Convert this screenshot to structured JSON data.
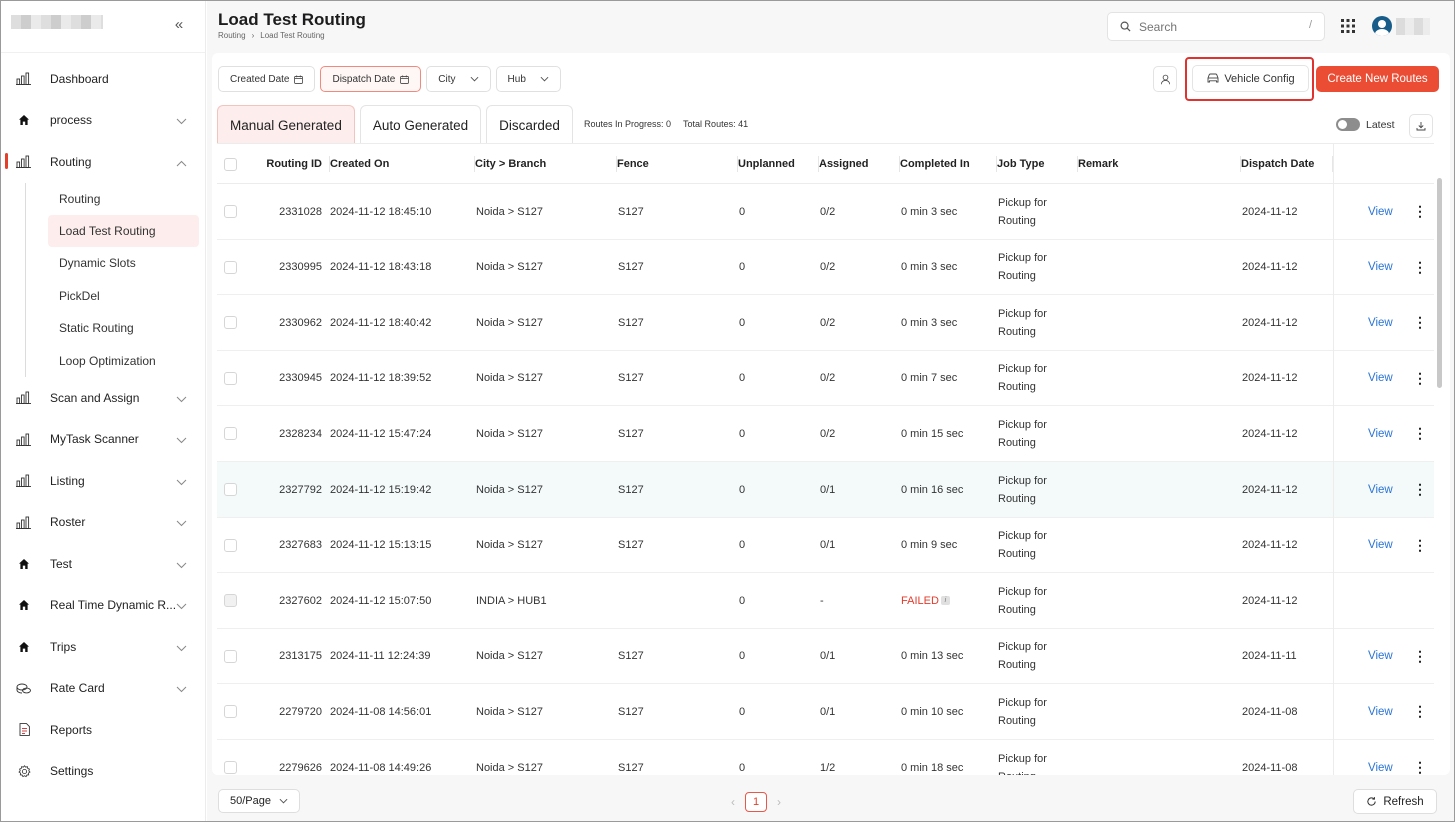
{
  "sidebar": {
    "items": [
      {
        "label": "Dashboard",
        "icon": "bar-chart-icon",
        "expandable": false
      },
      {
        "label": "process",
        "icon": "home-icon",
        "expandable": true
      },
      {
        "label": "Routing",
        "icon": "bar-chart-icon",
        "expandable": true,
        "active": true
      },
      {
        "label": "Scan and Assign",
        "icon": "bar-chart-icon",
        "expandable": true
      },
      {
        "label": "MyTask Scanner",
        "icon": "bar-chart-icon",
        "expandable": true
      },
      {
        "label": "Listing",
        "icon": "bar-chart-icon",
        "expandable": true
      },
      {
        "label": "Roster",
        "icon": "bar-chart-icon",
        "expandable": true
      },
      {
        "label": "Test",
        "icon": "home-icon",
        "expandable": true
      },
      {
        "label": "Real Time Dynamic R...",
        "icon": "home-icon",
        "expandable": true
      },
      {
        "label": "Trips",
        "icon": "home-icon",
        "expandable": true
      },
      {
        "label": "Rate Card",
        "icon": "coins-icon",
        "expandable": true
      },
      {
        "label": "Reports",
        "icon": "report-icon",
        "expandable": false
      },
      {
        "label": "Settings",
        "icon": "gear-icon",
        "expandable": false
      }
    ],
    "routing_sub": [
      "Routing",
      "Load Test Routing",
      "Dynamic Slots",
      "PickDel",
      "Static Routing",
      "Loop Optimization"
    ],
    "active_sub": "Load Test Routing"
  },
  "header": {
    "title": "Load Test Routing",
    "breadcrumb": [
      "Routing",
      "Load Test Routing"
    ],
    "search_placeholder": "Search",
    "search_shortcut": "/"
  },
  "filters": [
    "Created Date",
    "Dispatch Date",
    "City",
    "Hub"
  ],
  "actions": {
    "vehicle_config": "Vehicle Config",
    "create_routes": "Create New Routes"
  },
  "tabs": [
    "Manual Generated",
    "Auto Generated",
    "Discarded"
  ],
  "stats": {
    "in_progress": "Routes In Progress: 0",
    "total": "Total Routes: 41"
  },
  "toggle_label": "Latest",
  "table": {
    "columns": [
      "Routing ID",
      "Created On",
      "City > Branch",
      "Fence",
      "Unplanned",
      "Assigned",
      "Completed In",
      "Job Type",
      "Remark",
      "Dispatch Date"
    ],
    "rows": [
      {
        "id": "2331028",
        "created": "2024-11-12 18:45:10",
        "city": "Noida > S127",
        "fence": "S127",
        "unplanned": "0",
        "assigned": "0/2",
        "completed": "0 min 3 sec",
        "job1": "Pickup for",
        "job2": "Routing",
        "remark": "",
        "dispatch": "2024-11-12",
        "view": "View"
      },
      {
        "id": "2330995",
        "created": "2024-11-12 18:43:18",
        "city": "Noida > S127",
        "fence": "S127",
        "unplanned": "0",
        "assigned": "0/2",
        "completed": "0 min 3 sec",
        "job1": "Pickup for",
        "job2": "Routing",
        "remark": "",
        "dispatch": "2024-11-12",
        "view": "View"
      },
      {
        "id": "2330962",
        "created": "2024-11-12 18:40:42",
        "city": "Noida > S127",
        "fence": "S127",
        "unplanned": "0",
        "assigned": "0/2",
        "completed": "0 min 3 sec",
        "job1": "Pickup for",
        "job2": "Routing",
        "remark": "",
        "dispatch": "2024-11-12",
        "view": "View"
      },
      {
        "id": "2330945",
        "created": "2024-11-12 18:39:52",
        "city": "Noida > S127",
        "fence": "S127",
        "unplanned": "0",
        "assigned": "0/2",
        "completed": "0 min 7 sec",
        "job1": "Pickup for",
        "job2": "Routing",
        "remark": "",
        "dispatch": "2024-11-12",
        "view": "View"
      },
      {
        "id": "2328234",
        "created": "2024-11-12 15:47:24",
        "city": "Noida > S127",
        "fence": "S127",
        "unplanned": "0",
        "assigned": "0/2",
        "completed": "0 min 15 sec",
        "job1": "Pickup for",
        "job2": "Routing",
        "remark": "",
        "dispatch": "2024-11-12",
        "view": "View"
      },
      {
        "id": "2327792",
        "created": "2024-11-12 15:19:42",
        "city": "Noida > S127",
        "fence": "S127",
        "unplanned": "0",
        "assigned": "0/1",
        "completed": "0 min 16 sec",
        "job1": "Pickup for",
        "job2": "Routing",
        "remark": "",
        "dispatch": "2024-11-12",
        "view": "View",
        "highlight": true
      },
      {
        "id": "2327683",
        "created": "2024-11-12 15:13:15",
        "city": "Noida > S127",
        "fence": "S127",
        "unplanned": "0",
        "assigned": "0/1",
        "completed": "0 min 9 sec",
        "job1": "Pickup for",
        "job2": "Routing",
        "remark": "",
        "dispatch": "2024-11-12",
        "view": "View"
      },
      {
        "id": "2327602",
        "created": "2024-11-12 15:07:50",
        "city": "INDIA > HUB1",
        "fence": "",
        "unplanned": "0",
        "assigned": "-",
        "completed": "FAILED",
        "job1": "Pickup for",
        "job2": "Routing",
        "remark": "",
        "dispatch": "2024-11-12",
        "view": "",
        "failed": true
      },
      {
        "id": "2313175",
        "created": "2024-11-11 12:24:39",
        "city": "Noida > S127",
        "fence": "S127",
        "unplanned": "0",
        "assigned": "0/1",
        "completed": "0 min 13 sec",
        "job1": "Pickup for",
        "job2": "Routing",
        "remark": "",
        "dispatch": "2024-11-11",
        "view": "View"
      },
      {
        "id": "2279720",
        "created": "2024-11-08 14:56:01",
        "city": "Noida > S127",
        "fence": "S127",
        "unplanned": "0",
        "assigned": "0/1",
        "completed": "0 min 10 sec",
        "job1": "Pickup for",
        "job2": "Routing",
        "remark": "",
        "dispatch": "2024-11-08",
        "view": "View"
      },
      {
        "id": "2279626",
        "created": "2024-11-08 14:49:26",
        "city": "Noida > S127",
        "fence": "S127",
        "unplanned": "0",
        "assigned": "1/2",
        "completed": "0 min 18 sec",
        "job1": "Pickup for",
        "job2": "Routing",
        "remark": "",
        "dispatch": "2024-11-08",
        "view": "View"
      }
    ]
  },
  "footer": {
    "per_page": "50/Page",
    "current_page": "1",
    "refresh": "Refresh"
  }
}
